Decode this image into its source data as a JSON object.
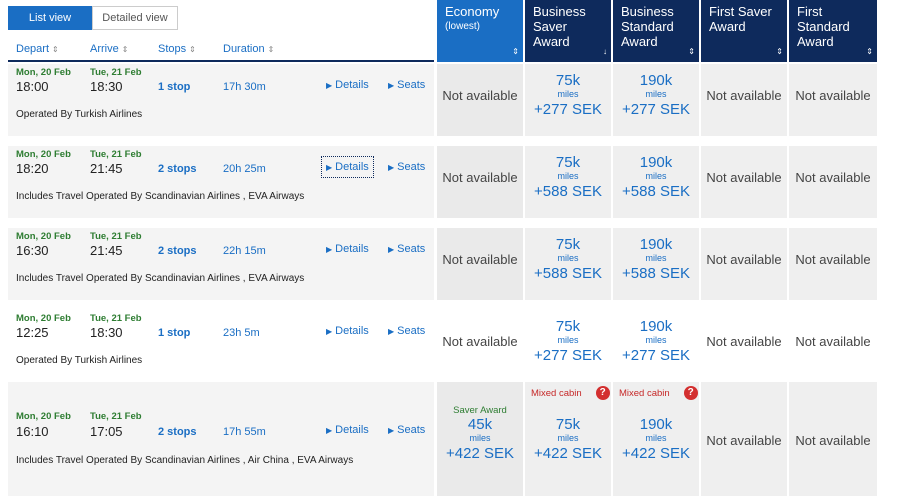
{
  "view_toggle": {
    "list": "List view",
    "detailed": "Detailed view"
  },
  "sort_headers": {
    "depart": "Depart",
    "arrive": "Arrive",
    "stops": "Stops",
    "duration": "Duration"
  },
  "fare_headers": [
    {
      "title": "Economy",
      "sub": "(lowest)"
    },
    {
      "title": "Business Saver Award",
      "sub": ""
    },
    {
      "title": "Business Standard Award",
      "sub": ""
    },
    {
      "title": "First Saver Award",
      "sub": ""
    },
    {
      "title": "First Standard Award",
      "sub": ""
    }
  ],
  "links": {
    "details": "Details",
    "seats": "Seats"
  },
  "miles_unit": "miles",
  "not_available": "Not available",
  "saver_award": "Saver Award",
  "mixed_cabin": "Mixed cabin",
  "flights": [
    {
      "depart_day": "Mon, 20 Feb",
      "depart_time": "18:00",
      "arrive_day": "Tue, 21 Feb",
      "arrive_time": "18:30",
      "stops": "1 stop",
      "duration": "17h 30m",
      "operated": "Operated By Turkish Airlines",
      "economy": "Not available",
      "biz_saver": {
        "miles": "75k",
        "price": "+277 SEK"
      },
      "biz_std": {
        "miles": "190k",
        "price": "+277 SEK"
      },
      "first_saver": "Not available",
      "first_std": "Not available"
    },
    {
      "depart_day": "Mon, 20 Feb",
      "depart_time": "18:20",
      "arrive_day": "Tue, 21 Feb",
      "arrive_time": "21:45",
      "stops": "2 stops",
      "duration": "20h 25m",
      "operated": "Includes Travel Operated By Scandinavian Airlines , EVA Airways",
      "economy": "Not available",
      "biz_saver": {
        "miles": "75k",
        "price": "+588 SEK"
      },
      "biz_std": {
        "miles": "190k",
        "price": "+588 SEK"
      },
      "first_saver": "Not available",
      "first_std": "Not available"
    },
    {
      "depart_day": "Mon, 20 Feb",
      "depart_time": "16:30",
      "arrive_day": "Tue, 21 Feb",
      "arrive_time": "21:45",
      "stops": "2 stops",
      "duration": "22h 15m",
      "operated": "Includes Travel Operated By Scandinavian Airlines , EVA Airways",
      "economy": "Not available",
      "biz_saver": {
        "miles": "75k",
        "price": "+588 SEK"
      },
      "biz_std": {
        "miles": "190k",
        "price": "+588 SEK"
      },
      "first_saver": "Not available",
      "first_std": "Not available"
    },
    {
      "depart_day": "Mon, 20 Feb",
      "depart_time": "12:25",
      "arrive_day": "Tue, 21 Feb",
      "arrive_time": "18:30",
      "stops": "1 stop",
      "duration": "23h 5m",
      "operated": "Operated By Turkish Airlines",
      "economy": "Not available",
      "biz_saver": {
        "miles": "75k",
        "price": "+277 SEK"
      },
      "biz_std": {
        "miles": "190k",
        "price": "+277 SEK"
      },
      "first_saver": "Not available",
      "first_std": "Not available"
    },
    {
      "depart_day": "Mon, 20 Feb",
      "depart_time": "16:10",
      "arrive_day": "Tue, 21 Feb",
      "arrive_time": "17:05",
      "stops": "2 stops",
      "duration": "17h 55m",
      "operated": "Includes Travel Operated By Scandinavian Airlines , Air China , EVA Airways",
      "economy_award": {
        "miles": "45k",
        "price": "+422 SEK"
      },
      "biz_saver": {
        "miles": "75k",
        "price": "+422 SEK"
      },
      "biz_std": {
        "miles": "190k",
        "price": "+422 SEK"
      },
      "first_saver": "Not available",
      "first_std": "Not available"
    }
  ]
}
